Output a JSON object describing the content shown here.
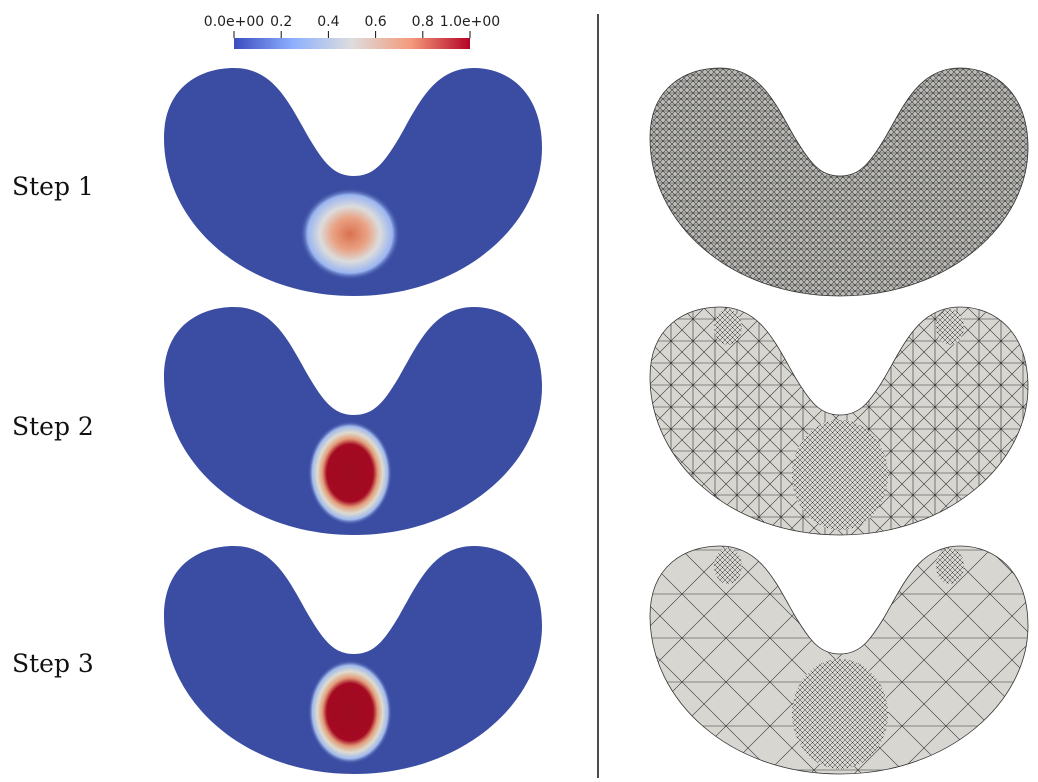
{
  "colorbar": {
    "tick_labels": [
      "0.0e+00",
      "0.2",
      "0.4",
      "0.6",
      "0.8",
      "1.0e+00"
    ],
    "min": 0,
    "max": 1,
    "colors": [
      "#3b4cc0",
      "#dddddd",
      "#b40426"
    ]
  },
  "rows": [
    {
      "label": "Step 1",
      "blob_peak": 0.7
    },
    {
      "label": "Step 2",
      "blob_peak": 1.0
    },
    {
      "label": "Step 3",
      "blob_peak": 1.0
    }
  ],
  "colors": {
    "field_background": "#3a4da2",
    "mesh_fill": "#d8d6d1",
    "mesh_stroke": "#222222",
    "divider": "#111111",
    "blob_peak_partial": "#d9714f",
    "blob_peak_full": "#b40426"
  }
}
